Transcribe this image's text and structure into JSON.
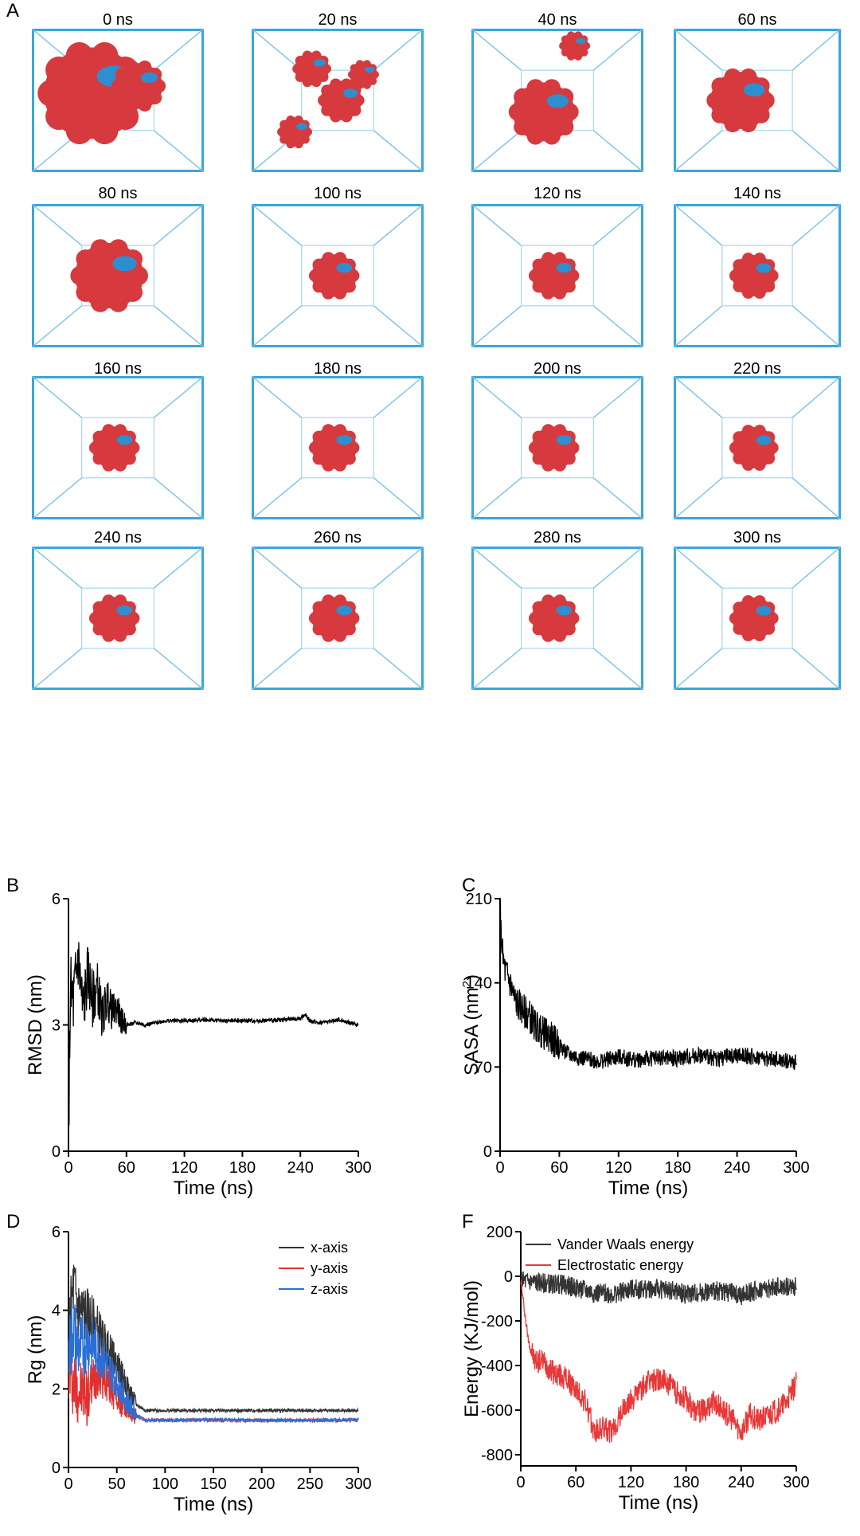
{
  "panels": {
    "a": "A",
    "b": "B",
    "c": "C",
    "d": "D",
    "f": "F"
  },
  "snapshots": [
    {
      "label": "0 ns"
    },
    {
      "label": "20 ns"
    },
    {
      "label": "40 ns"
    },
    {
      "label": "60 ns"
    },
    {
      "label": "80 ns"
    },
    {
      "label": "100 ns"
    },
    {
      "label": "120 ns"
    },
    {
      "label": "140 ns"
    },
    {
      "label": "160 ns"
    },
    {
      "label": "180 ns"
    },
    {
      "label": "200 ns"
    },
    {
      "label": "220 ns"
    },
    {
      "label": "240 ns"
    },
    {
      "label": "260 ns"
    },
    {
      "label": "280 ns"
    },
    {
      "label": "300 ns"
    }
  ],
  "colors": {
    "box": "#3aa6dc",
    "protein": "#d63a3e",
    "ligand": "#2e8fd0"
  },
  "chart_data": [
    {
      "id": "B",
      "type": "line",
      "xlabel": "Time (ns)",
      "ylabel": "RMSD (nm)",
      "xlim": [
        0,
        300
      ],
      "ylim": [
        0,
        6
      ],
      "xticks": [
        0,
        60,
        120,
        180,
        240,
        300
      ],
      "yticks": [
        0,
        3,
        6
      ],
      "series": [
        {
          "name": "RMSD",
          "color": "#000000",
          "x": [
            0,
            2,
            5,
            10,
            15,
            20,
            25,
            30,
            35,
            40,
            45,
            50,
            55,
            60,
            70,
            80,
            100,
            120,
            140,
            160,
            180,
            200,
            220,
            240,
            245,
            250,
            260,
            280,
            300
          ],
          "y": [
            0.3,
            3.8,
            3.5,
            4.6,
            3.3,
            4.2,
            3.6,
            3.9,
            3.2,
            3.6,
            3.3,
            3.4,
            3.1,
            3.0,
            3.05,
            3.0,
            3.1,
            3.1,
            3.12,
            3.1,
            3.1,
            3.1,
            3.12,
            3.15,
            3.25,
            3.1,
            3.05,
            3.12,
            3.0
          ]
        }
      ]
    },
    {
      "id": "C",
      "type": "line",
      "xlabel": "Time (ns)",
      "ylabel": "SASA (nm",
      "ylabel_sup": "2",
      "ylabel_end": ")",
      "xlim": [
        0,
        300
      ],
      "ylim": [
        0,
        210
      ],
      "xticks": [
        0,
        60,
        120,
        180,
        240,
        300
      ],
      "yticks": [
        0,
        70,
        140,
        210
      ],
      "series": [
        {
          "name": "SASA",
          "color": "#000000",
          "x": [
            0,
            1,
            3,
            5,
            10,
            15,
            20,
            30,
            40,
            50,
            60,
            70,
            80,
            90,
            100,
            120,
            140,
            160,
            180,
            200,
            220,
            240,
            260,
            280,
            300
          ],
          "y": [
            210,
            180,
            160,
            150,
            140,
            125,
            120,
            112,
            100,
            95,
            88,
            80,
            78,
            76,
            75,
            78,
            76,
            78,
            77,
            80,
            77,
            80,
            78,
            76,
            74
          ]
        }
      ]
    },
    {
      "id": "D",
      "type": "line",
      "xlabel": "Time (ns)",
      "ylabel": "Rg (nm)",
      "xlim": [
        0,
        300
      ],
      "ylim": [
        0,
        6
      ],
      "xticks": [
        0,
        50,
        100,
        150,
        200,
        250,
        300
      ],
      "yticks": [
        0,
        2,
        4,
        6
      ],
      "legend": "top-right",
      "series": [
        {
          "name": "x-axis",
          "color": "#333333",
          "x": [
            0,
            5,
            10,
            20,
            30,
            40,
            50,
            60,
            70,
            80,
            100,
            150,
            200,
            250,
            300
          ],
          "y": [
            3.2,
            4.6,
            4.0,
            3.8,
            3.5,
            3.0,
            2.6,
            2.1,
            1.6,
            1.45,
            1.45,
            1.45,
            1.45,
            1.45,
            1.45
          ]
        },
        {
          "name": "y-axis",
          "color": "#e03030",
          "x": [
            0,
            5,
            10,
            20,
            30,
            40,
            50,
            60,
            70,
            80,
            100,
            150,
            200,
            250,
            300
          ],
          "y": [
            2.6,
            2.2,
            2.0,
            1.8,
            2.5,
            2.2,
            1.8,
            1.5,
            1.3,
            1.2,
            1.2,
            1.2,
            1.2,
            1.2,
            1.2
          ]
        },
        {
          "name": "z-axis",
          "color": "#2a6fd6",
          "x": [
            0,
            5,
            10,
            20,
            30,
            40,
            50,
            60,
            70,
            80,
            100,
            150,
            200,
            250,
            300
          ],
          "y": [
            2.8,
            3.6,
            3.0,
            3.2,
            3.0,
            2.6,
            2.2,
            1.7,
            1.35,
            1.2,
            1.2,
            1.22,
            1.2,
            1.2,
            1.22
          ]
        }
      ]
    },
    {
      "id": "F",
      "type": "line",
      "xlabel": "Time (ns)",
      "ylabel": "Energy (KJ/mol)",
      "xlim": [
        0,
        300
      ],
      "ylim": [
        -850,
        200
      ],
      "xticks": [
        0,
        60,
        120,
        180,
        240,
        300
      ],
      "yticks": [
        -800,
        -600,
        -400,
        -200,
        0,
        200
      ],
      "legend": "top-right",
      "series": [
        {
          "name": "Vander Waals energy",
          "color": "#333333",
          "x": [
            0,
            20,
            40,
            60,
            80,
            100,
            120,
            140,
            160,
            180,
            200,
            220,
            240,
            260,
            280,
            300
          ],
          "y": [
            -20,
            -30,
            -35,
            -50,
            -75,
            -80,
            -60,
            -55,
            -60,
            -80,
            -70,
            -65,
            -85,
            -60,
            -50,
            -45
          ]
        },
        {
          "name": "Electrostatic energy",
          "color": "#e83838",
          "x": [
            0,
            3,
            8,
            15,
            25,
            35,
            50,
            60,
            70,
            80,
            90,
            100,
            110,
            120,
            130,
            140,
            150,
            160,
            170,
            180,
            190,
            200,
            210,
            220,
            230,
            240,
            250,
            260,
            270,
            280,
            290,
            300
          ],
          "y": [
            -20,
            -120,
            -280,
            -380,
            -380,
            -430,
            -460,
            -510,
            -560,
            -700,
            -680,
            -700,
            -610,
            -560,
            -510,
            -470,
            -460,
            -480,
            -520,
            -550,
            -610,
            -600,
            -560,
            -600,
            -640,
            -700,
            -620,
            -650,
            -620,
            -600,
            -560,
            -480
          ]
        }
      ]
    }
  ]
}
